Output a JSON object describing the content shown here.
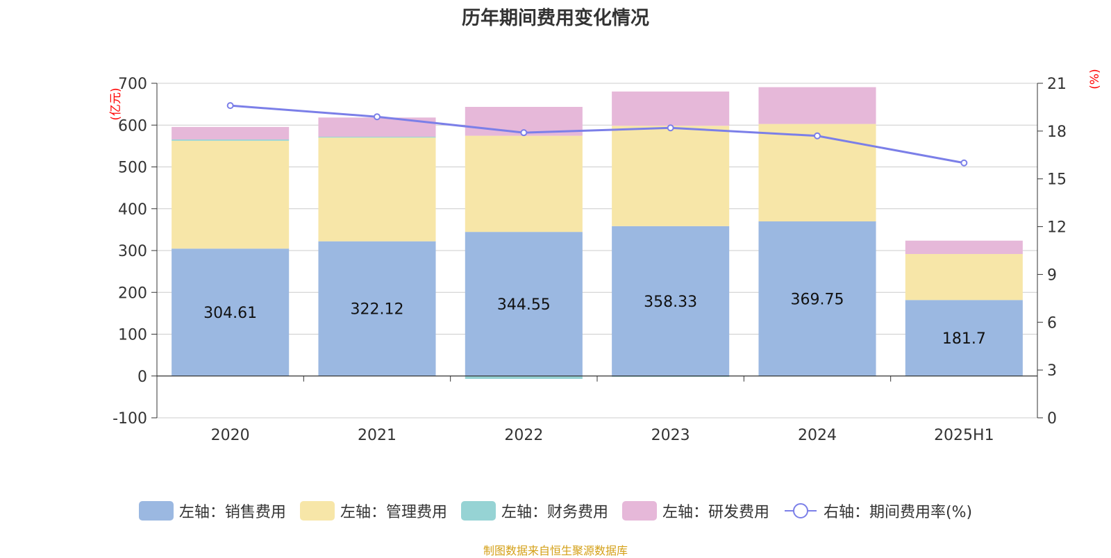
{
  "chart_data": {
    "type": "bar",
    "title": "历年期间费用变化情况",
    "source": "制图数据来自恒生聚源数据库",
    "categories": [
      "2020",
      "2021",
      "2022",
      "2023",
      "2024",
      "2025H1"
    ],
    "left_axis": {
      "unit": "(亿元)",
      "min": -100,
      "max": 700,
      "ticks": [
        -100,
        0,
        100,
        200,
        300,
        400,
        500,
        600,
        700
      ]
    },
    "right_axis": {
      "unit": "(%)",
      "min": 0,
      "max": 21,
      "ticks": [
        0,
        3,
        6,
        9,
        12,
        15,
        18,
        21
      ]
    },
    "stacked": true,
    "series": [
      {
        "name": "左轴：销售费用",
        "color": "#9bb8e1",
        "values": [
          304.61,
          322.12,
          344.55,
          358.33,
          369.75,
          181.7
        ],
        "data_labels": [
          "304.61",
          "322.12",
          "344.55",
          "358.33",
          "369.75",
          "181.7"
        ]
      },
      {
        "name": "左轴：管理费用",
        "color": "#f7e6a8",
        "values": [
          258,
          248,
          230,
          240,
          233,
          110
        ]
      },
      {
        "name": "左轴：财务费用",
        "color": "#96d3d4",
        "values": [
          3,
          2,
          -7,
          -2,
          -1,
          -1
        ]
      },
      {
        "name": "左轴：研发费用",
        "color": "#e6b8d9",
        "values": [
          30,
          46,
          69,
          82,
          88,
          32
        ]
      }
    ],
    "line_series": {
      "name": "右轴：期间费用率(%)",
      "color": "#7b7fe8",
      "values": [
        19.6,
        18.9,
        17.9,
        18.2,
        17.7,
        16.0
      ]
    },
    "grid": true,
    "legend_position": "bottom"
  }
}
